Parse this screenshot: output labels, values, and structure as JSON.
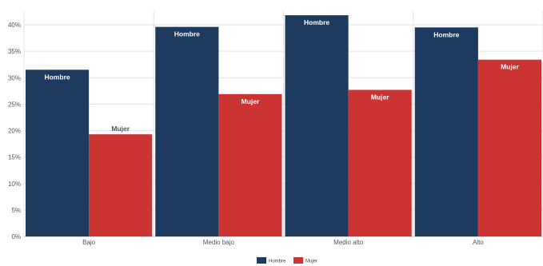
{
  "chart_data": {
    "type": "bar",
    "categories": [
      "Bajo",
      "Medio bajo",
      "Medio alto",
      "Alto"
    ],
    "series": [
      {
        "name": "Hombre",
        "values": [
          31.5,
          39.6,
          41.8,
          39.5
        ],
        "color": "#1d3a5f",
        "label": "Hombre",
        "label_color": "#ffffff"
      },
      {
        "name": "Mujer",
        "values": [
          19.3,
          26.9,
          27.7,
          33.4
        ],
        "color": "#cc3333",
        "label": "Mujer",
        "label_color": "#ffffff"
      }
    ],
    "outside_label_color": "#555555",
    "y_ticks": [
      "0%",
      "5%",
      "10%",
      "15%",
      "20%",
      "25%",
      "30%",
      "35%",
      "40%"
    ],
    "ylim": [
      0,
      40
    ],
    "grid": true,
    "legend": "bottom-center",
    "title": "",
    "xlabel": "",
    "ylabel": ""
  }
}
